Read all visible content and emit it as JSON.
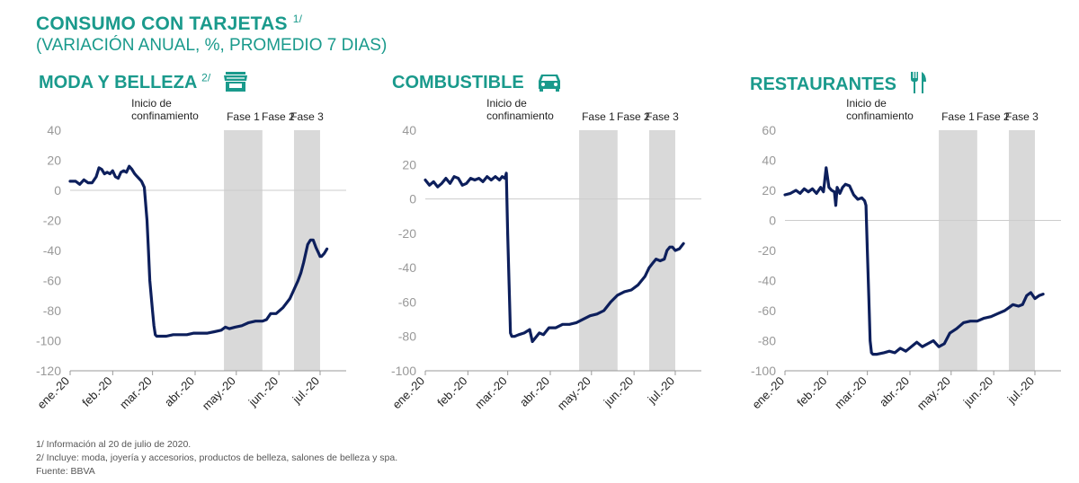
{
  "header": {
    "title": "CONSUMO CON TARJETAS",
    "title_sup": "1/",
    "subtitle": "(VARIACIÓN ANUAL, %, PROMEDIO 7 DIAS)"
  },
  "panels": [
    {
      "title": "MODA Y BELLEZA",
      "sup": "2/",
      "icon": "store-icon"
    },
    {
      "title": "COMBUSTIBLE",
      "sup": "",
      "icon": "car-icon"
    },
    {
      "title": "RESTAURANTES",
      "sup": "",
      "icon": "fork-knife-icon"
    }
  ],
  "footnotes": [
    "1/ Información al 20 de julio de 2020.",
    "2/ Incluye: moda, joyería y accesorios, productos de belleza, salones de belleza y spa.",
    "Fuente: BBVA"
  ],
  "colors": {
    "accent": "#1a9a8c",
    "line": "#0d1f5c",
    "shade": "#d9d9d9",
    "axis": "#999999"
  },
  "chart_data": [
    {
      "type": "line",
      "title": "MODA Y BELLEZA",
      "ylim": [
        -120,
        40
      ],
      "yticks": [
        40,
        20,
        0,
        -20,
        -40,
        -60,
        -80,
        -100,
        -120
      ],
      "x_tick_labels": [
        "ene.-20",
        "feb.-20",
        "mar.-20",
        "abr.-20",
        "may.-20",
        "jun.-20",
        "jul.-20"
      ],
      "x_tick_positions": [
        0,
        31,
        60,
        91,
        121,
        152,
        182
      ],
      "xlim": [
        0,
        201
      ],
      "annotation": {
        "text": [
          "Inicio de",
          "confinamiento"
        ],
        "x": 59
      },
      "phases": [
        {
          "label": "Fase 1",
          "x0": 112,
          "x1": 140,
          "shaded": true
        },
        {
          "label": "Fase 2",
          "x0": 140,
          "x1": 163,
          "shaded": false
        },
        {
          "label": "Fase 3",
          "x0": 163,
          "x1": 182,
          "shaded": true
        }
      ],
      "series": [
        {
          "x": [
            0,
            4,
            7,
            10,
            13,
            16,
            19,
            21,
            23,
            25,
            27,
            29,
            31,
            33,
            35,
            37,
            39,
            41,
            43,
            45,
            47,
            48,
            50,
            52,
            54,
            56,
            57,
            58,
            60,
            61,
            62,
            63,
            64,
            66,
            70,
            75,
            80,
            85,
            90,
            95,
            100,
            105,
            110,
            113,
            116,
            120,
            125,
            130,
            135,
            140,
            143,
            146,
            150,
            155,
            160,
            163,
            166,
            168,
            170,
            172,
            173,
            175,
            177,
            179,
            181,
            182,
            183,
            185,
            187
          ],
          "y": [
            6,
            6,
            4,
            7,
            5,
            5,
            9,
            15,
            14,
            11,
            12,
            11,
            13,
            9,
            8,
            12,
            13,
            12,
            16,
            14,
            11,
            10,
            8,
            6,
            2,
            -20,
            -40,
            -60,
            -80,
            -90,
            -96,
            -97,
            -97,
            -97,
            -97,
            -96,
            -96,
            -96,
            -95,
            -95,
            -95,
            -94,
            -93,
            -91,
            -92,
            -91,
            -90,
            -88,
            -87,
            -87,
            -86,
            -82,
            -82,
            -78,
            -72,
            -66,
            -60,
            -55,
            -48,
            -40,
            -36,
            -33,
            -33,
            -38,
            -42,
            -44,
            -44,
            -42,
            -39
          ]
        }
      ]
    },
    {
      "type": "line",
      "title": "COMBUSTIBLE",
      "ylim": [
        -100,
        40
      ],
      "yticks": [
        40,
        20,
        0,
        -20,
        -40,
        -60,
        -80,
        -100
      ],
      "x_tick_labels": [
        "ene.-20",
        "feb.-20",
        "mar.-20",
        "abr.-20",
        "may.-20",
        "jun.-20",
        "jul.-20"
      ],
      "x_tick_positions": [
        0,
        31,
        60,
        91,
        121,
        152,
        182
      ],
      "xlim": [
        0,
        201
      ],
      "annotation": {
        "text": [
          "Inicio de",
          "confinamiento"
        ],
        "x": 59
      },
      "phases": [
        {
          "label": "Fase 1",
          "x0": 112,
          "x1": 140,
          "shaded": true
        },
        {
          "label": "Fase 2",
          "x0": 140,
          "x1": 163,
          "shaded": false
        },
        {
          "label": "Fase 3",
          "x0": 163,
          "x1": 182,
          "shaded": true
        }
      ],
      "series": [
        {
          "x": [
            0,
            3,
            6,
            9,
            12,
            15,
            18,
            21,
            24,
            27,
            30,
            33,
            36,
            39,
            42,
            45,
            48,
            51,
            54,
            56,
            58,
            59,
            60,
            61,
            62,
            63,
            65,
            68,
            72,
            76,
            78,
            80,
            83,
            86,
            90,
            95,
            100,
            105,
            110,
            115,
            120,
            125,
            130,
            135,
            140,
            145,
            150,
            155,
            160,
            163,
            166,
            168,
            171,
            174,
            176,
            178,
            180,
            182,
            185,
            188
          ],
          "y": [
            11,
            8,
            10,
            7,
            9,
            12,
            9,
            13,
            12,
            8,
            9,
            12,
            11,
            12,
            10,
            13,
            11,
            13,
            11,
            13,
            12,
            15,
            -20,
            -50,
            -78,
            -80,
            -80,
            -79,
            -78,
            -76,
            -83,
            -81,
            -78,
            -79,
            -75,
            -75,
            -73,
            -73,
            -72,
            -70,
            -68,
            -67,
            -65,
            -60,
            -56,
            -54,
            -53,
            -50,
            -45,
            -40,
            -37,
            -35,
            -36,
            -35,
            -30,
            -28,
            -28,
            -30,
            -29,
            -26
          ]
        }
      ]
    },
    {
      "type": "line",
      "title": "RESTAURANTES",
      "ylim": [
        -100,
        60
      ],
      "yticks": [
        60,
        40,
        20,
        0,
        -20,
        -40,
        -60,
        -80,
        -100
      ],
      "x_tick_labels": [
        "ene.-20",
        "feb.-20",
        "mar.-20",
        "abr.-20",
        "may.-20",
        "jun.-20",
        "jul.-20"
      ],
      "x_tick_positions": [
        0,
        31,
        60,
        91,
        121,
        152,
        182
      ],
      "xlim": [
        0,
        201
      ],
      "annotation": {
        "text": [
          "Inicio de",
          "confinamiento"
        ],
        "x": 59
      },
      "phases": [
        {
          "label": "Fase 1",
          "x0": 112,
          "x1": 140,
          "shaded": true
        },
        {
          "label": "Fase 2",
          "x0": 140,
          "x1": 163,
          "shaded": false
        },
        {
          "label": "Fase 3",
          "x0": 163,
          "x1": 182,
          "shaded": true
        }
      ],
      "series": [
        {
          "x": [
            0,
            4,
            8,
            11,
            14,
            17,
            20,
            23,
            26,
            28,
            30,
            32,
            34,
            36,
            37,
            38,
            40,
            42,
            44,
            47,
            50,
            53,
            56,
            58,
            59,
            60,
            61,
            62,
            63,
            64,
            67,
            72,
            76,
            80,
            84,
            88,
            92,
            96,
            100,
            104,
            108,
            112,
            116,
            120,
            125,
            130,
            135,
            140,
            145,
            150,
            155,
            160,
            163,
            166,
            170,
            173,
            176,
            179,
            182,
            185,
            188
          ],
          "y": [
            17,
            18,
            20,
            18,
            21,
            19,
            21,
            18,
            22,
            19,
            35,
            22,
            20,
            19,
            10,
            22,
            18,
            22,
            24,
            23,
            17,
            14,
            15,
            13,
            10,
            -20,
            -50,
            -80,
            -88,
            -89,
            -89,
            -88,
            -87,
            -88,
            -85,
            -87,
            -84,
            -81,
            -84,
            -82,
            -80,
            -84,
            -82,
            -75,
            -72,
            -68,
            -67,
            -67,
            -65,
            -64,
            -62,
            -60,
            -58,
            -56,
            -57,
            -56,
            -50,
            -48,
            -52,
            -50,
            -49
          ]
        }
      ]
    }
  ]
}
